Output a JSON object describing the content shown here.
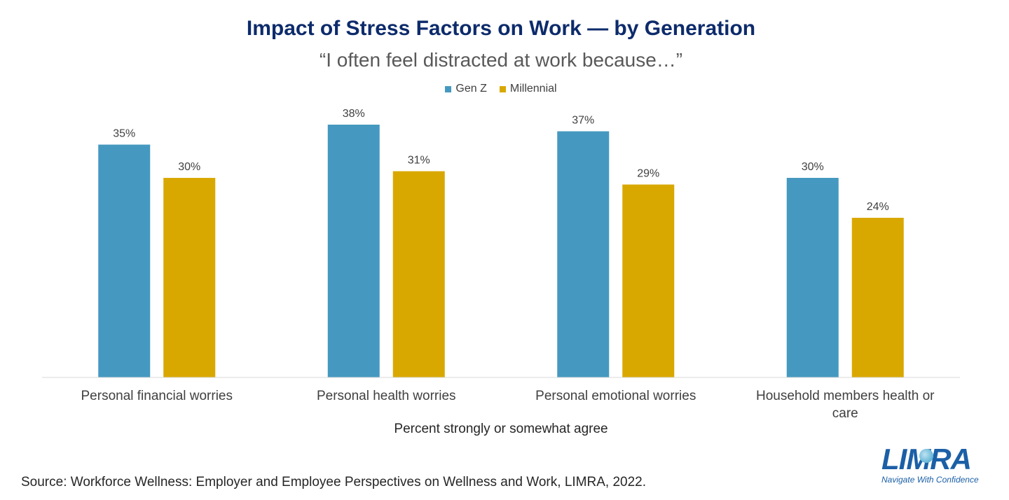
{
  "chart_data": {
    "type": "bar",
    "title": "Impact of Stress Factors on Work — by Generation",
    "subtitle": "“I often feel distracted at work because…”",
    "categories": [
      [
        "Personal financial worries"
      ],
      [
        "Personal health worries"
      ],
      [
        "Personal emotional worries"
      ],
      [
        "Household members health or",
        "care"
      ]
    ],
    "series": [
      {
        "name": "Gen Z",
        "color": "#4599c0",
        "values": [
          35,
          38,
          37,
          30
        ]
      },
      {
        "name": "Millennial",
        "color": "#d9a800",
        "values": [
          30,
          31,
          29,
          24
        ]
      }
    ],
    "value_suffix": "%",
    "xlabel": "Percent strongly or somewhat agree",
    "ylabel": "",
    "ylim": [
      0,
      40
    ],
    "grid": false,
    "legend_position": "top-center"
  },
  "footer": {
    "source": "Source: Workforce Wellness: Employer and Employee Perspectives on Wellness and Work, LIMRA, 2022."
  },
  "logo": {
    "name": "LIMRA",
    "tagline": "Navigate With Confidence"
  }
}
